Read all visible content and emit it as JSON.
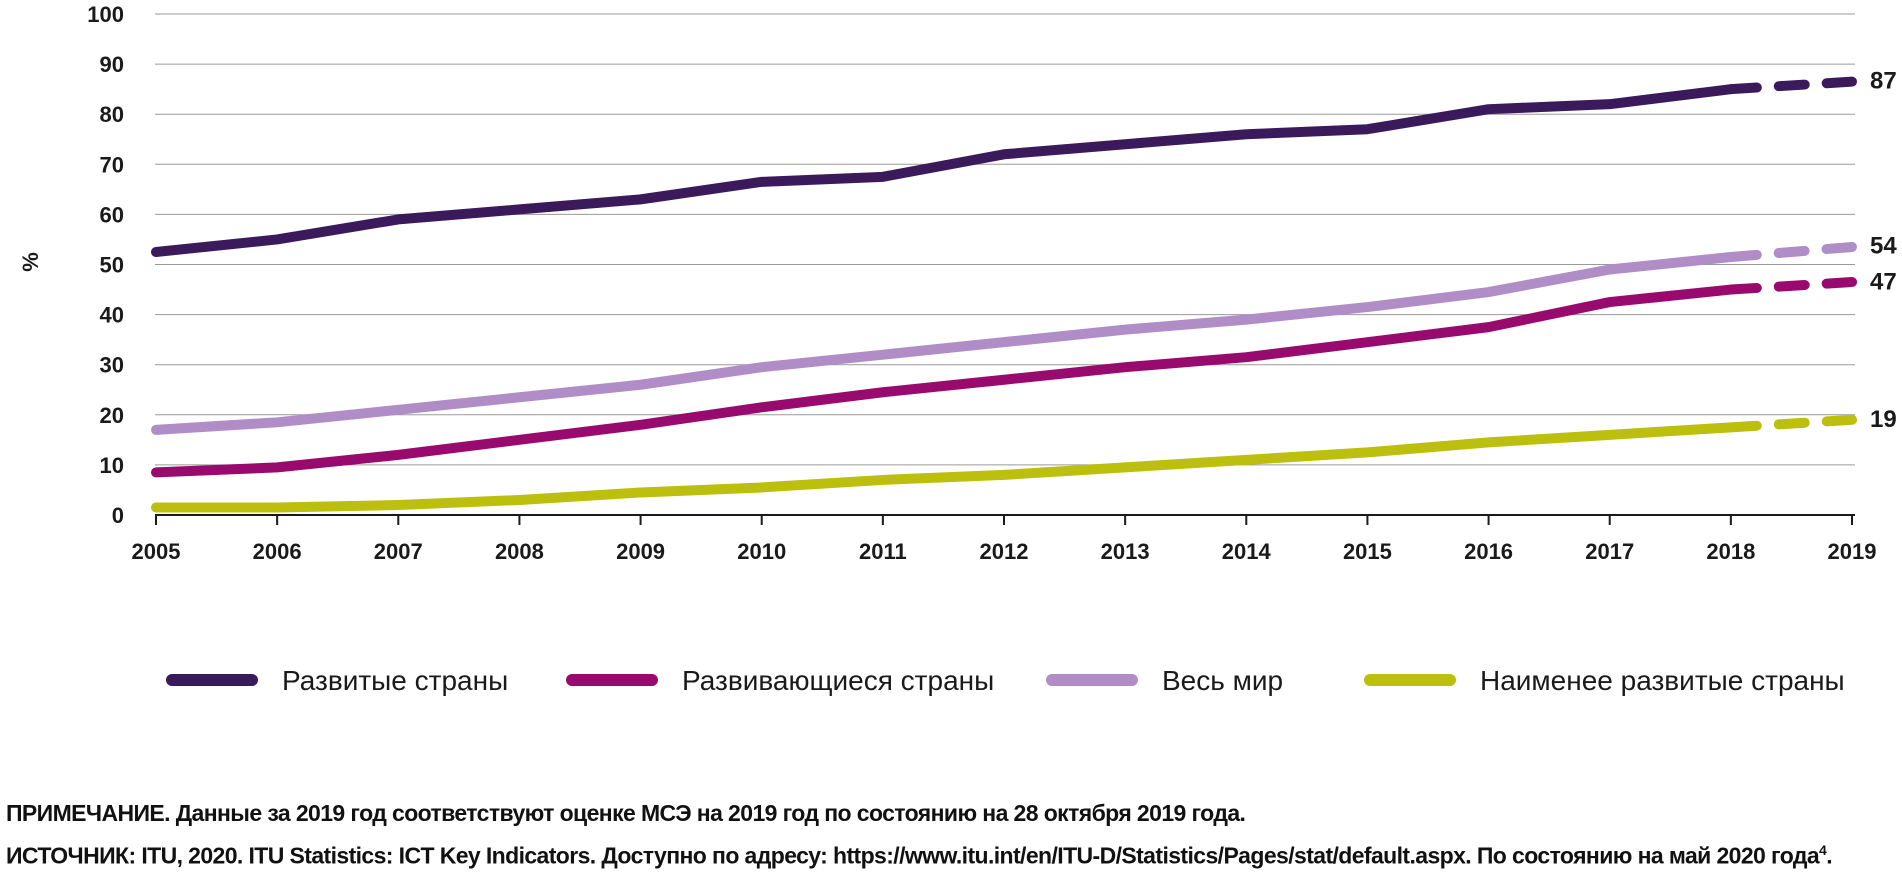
{
  "chart_data": {
    "type": "line",
    "ylabel": "%",
    "xlabel": "",
    "ylim": [
      0,
      100
    ],
    "yticks": [
      "0",
      "10",
      "20",
      "30",
      "40",
      "50",
      "60",
      "70",
      "80",
      "90",
      "100"
    ],
    "x": [
      "2005",
      "2006",
      "2007",
      "2008",
      "2009",
      "2010",
      "2011",
      "2012",
      "2013",
      "2014",
      "2015",
      "2016",
      "2017",
      "2018",
      "2019"
    ],
    "grid": "horizontal",
    "estimate_from": "2018",
    "series": [
      {
        "name": "Развитые страны",
        "color": "#3b1a5c",
        "values": [
          52.5,
          55,
          59,
          61,
          63,
          66.5,
          67.5,
          72,
          74,
          76,
          77,
          81,
          82,
          85,
          86.5
        ],
        "end_label": "87"
      },
      {
        "name": "Развивающиеся страны",
        "color": "#980a6e",
        "values": [
          8.5,
          9.5,
          12,
          15,
          18,
          21.5,
          24.5,
          27,
          29.5,
          31.5,
          34.5,
          37.5,
          42.5,
          45,
          46.5
        ],
        "end_label": "47"
      },
      {
        "name": "Весь мир",
        "color": "#b08dc6",
        "values": [
          17,
          18.5,
          21,
          23.5,
          26,
          29.5,
          32,
          34.5,
          37,
          39,
          41.5,
          44.5,
          49,
          51.5,
          53.5
        ],
        "end_label": "54"
      },
      {
        "name": "Наименее развитые страны",
        "color": "#bcbf0d",
        "values": [
          1.5,
          1.5,
          2,
          3,
          4.5,
          5.5,
          7,
          8,
          9.5,
          11,
          12.5,
          14.5,
          16,
          17.5,
          19
        ],
        "end_label": "19"
      }
    ]
  },
  "notes": {
    "note": "ПРИМЕЧАНИЕ. Данные за 2019 год соответствуют оценке МСЭ на 2019 год по состоянию на 28 октября 2019 года.",
    "source": "ИСТОЧНИК: ITU, 2020. ITU Statistics: ICT Key Indicators. Доступно по адресу: https://www.itu.int/en/ITU-D/Statistics/Pages/stat/default.aspx. По состоянию на май 2020 года",
    "source_footnote": "4"
  }
}
